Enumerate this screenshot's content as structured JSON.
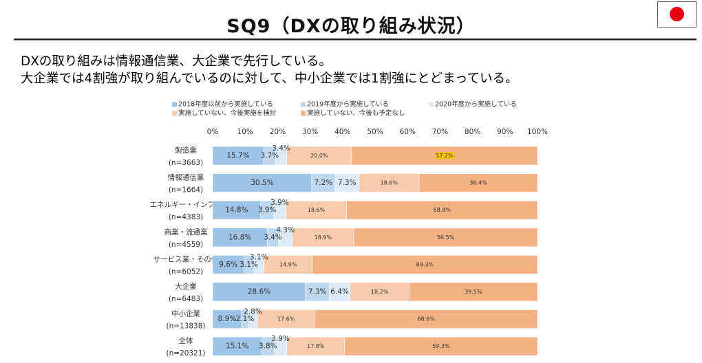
{
  "slide": {
    "title": "SQ9（DXの取り組み状況）",
    "flag_icon": "japan-flag-icon",
    "flag_color": "#E60012",
    "summary_line_1": "DXの取り組みは情報通信業、大企業で先行している。",
    "summary_line_2": "大企業では4割強が取り組んでいるのに対して、中小企業では1割強にとどまっている。"
  },
  "chart_data": {
    "type": "bar",
    "orientation": "horizontal",
    "stacking": "percent",
    "title": "",
    "xlabel": "",
    "ylabel": "",
    "xlim": [
      0,
      100
    ],
    "x_ticks": [
      "0%",
      "10%",
      "20%",
      "30%",
      "40%",
      "50%",
      "60%",
      "70%",
      "80%",
      "90%",
      "100%"
    ],
    "grid": false,
    "legend_position": "top",
    "value_suffix": "%",
    "categories": [
      {
        "name": "製造業",
        "n": "(n=3663)"
      },
      {
        "name": "情報通信業",
        "n": "(n=1664)"
      },
      {
        "name": "エネルギー・インフラ",
        "n": "(n=4383)"
      },
      {
        "name": "商業・流通業",
        "n": "(n=4559)"
      },
      {
        "name": "サービス業・その他",
        "n": "(n=6052)"
      },
      {
        "name": "大企業",
        "n": "(n=6483)"
      },
      {
        "name": "中小企業",
        "n": "(n=13838)"
      },
      {
        "name": "全体",
        "n": "(n=20321)"
      }
    ],
    "series": [
      {
        "name": "2018年度以前から実施している",
        "color": "#9DC3E6",
        "values": [
          15.7,
          30.5,
          14.8,
          16.8,
          9.6,
          28.6,
          8.9,
          15.1
        ]
      },
      {
        "name": "2019年度から実施している",
        "color": "#BDD7EE",
        "values": [
          3.7,
          7.2,
          3.9,
          3.4,
          3.1,
          7.3,
          2.1,
          3.8
        ]
      },
      {
        "name": "2020年度から実施している",
        "color": "#DEEBF7",
        "values": [
          3.4,
          7.3,
          3.9,
          4.3,
          3.1,
          6.4,
          2.8,
          3.9
        ]
      },
      {
        "name": "実施していない、今後実施を検討",
        "color": "#F8CBAD",
        "values": [
          20.0,
          18.6,
          18.6,
          18.9,
          14.9,
          18.2,
          17.6,
          17.8
        ]
      },
      {
        "name": "実施していない、今後も予定なし",
        "color": "#F4B183",
        "values": [
          57.2,
          36.4,
          58.8,
          56.5,
          69.3,
          39.5,
          68.6,
          59.3
        ]
      }
    ],
    "highlight": {
      "series": 4,
      "category": 0,
      "color": "#FFC000"
    }
  }
}
